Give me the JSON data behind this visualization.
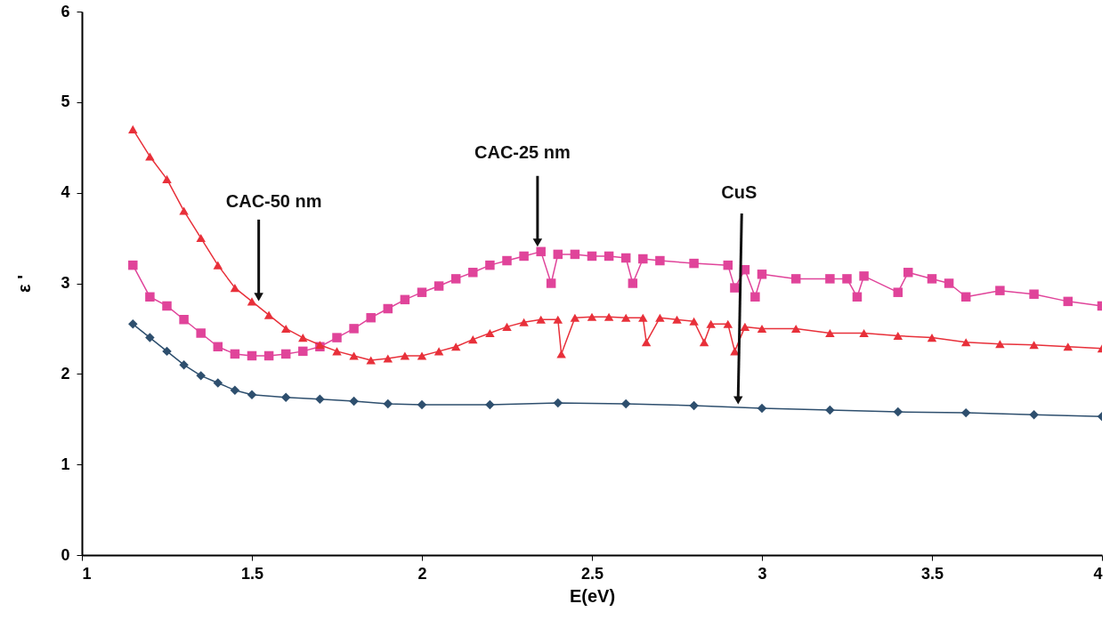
{
  "chart_data": {
    "type": "line",
    "xlabel": "E(eV)",
    "ylabel": "ε '",
    "xlim": [
      1,
      4
    ],
    "ylim": [
      0,
      6
    ],
    "xticks": [
      1,
      1.5,
      2,
      2.5,
      3,
      3.5,
      4
    ],
    "yticks": [
      0,
      1,
      2,
      3,
      4,
      5,
      6
    ],
    "grid": false,
    "annotations": [
      {
        "text": "CAC-50 nm",
        "x": 1.52,
        "y": 2.8
      },
      {
        "text": "CAC-25 nm",
        "x": 2.34,
        "y": 3.4
      },
      {
        "text": "CuS",
        "x": 2.93,
        "y": 1.66
      }
    ],
    "series": [
      {
        "color": "#e8303a",
        "marker": "triangle",
        "x": [
          1.15,
          1.2,
          1.25,
          1.3,
          1.35,
          1.4,
          1.45,
          1.5,
          1.55,
          1.6,
          1.65,
          1.7,
          1.75,
          1.8,
          1.85,
          1.9,
          1.95,
          2.0,
          2.05,
          2.1,
          2.15,
          2.2,
          2.25,
          2.3,
          2.35,
          2.4,
          2.41,
          2.45,
          2.5,
          2.55,
          2.6,
          2.65,
          2.66,
          2.7,
          2.75,
          2.8,
          2.83,
          2.85,
          2.9,
          2.92,
          2.95,
          3.0,
          3.1,
          3.2,
          3.3,
          3.4,
          3.5,
          3.6,
          3.7,
          3.8,
          3.9,
          4.0
        ],
        "values": [
          4.7,
          4.4,
          4.15,
          3.8,
          3.5,
          3.2,
          2.95,
          2.8,
          2.65,
          2.5,
          2.4,
          2.32,
          2.25,
          2.2,
          2.15,
          2.17,
          2.2,
          2.2,
          2.25,
          2.3,
          2.38,
          2.45,
          2.52,
          2.57,
          2.6,
          2.6,
          2.22,
          2.62,
          2.63,
          2.63,
          2.62,
          2.62,
          2.35,
          2.62,
          2.6,
          2.58,
          2.35,
          2.55,
          2.55,
          2.25,
          2.52,
          2.5,
          2.5,
          2.45,
          2.45,
          2.42,
          2.4,
          2.35,
          2.33,
          2.32,
          2.3,
          2.28
        ]
      },
      {
        "color": "#e0449a",
        "marker": "square",
        "x": [
          1.15,
          1.2,
          1.25,
          1.3,
          1.35,
          1.4,
          1.45,
          1.5,
          1.55,
          1.6,
          1.65,
          1.7,
          1.75,
          1.8,
          1.85,
          1.9,
          1.95,
          2.0,
          2.05,
          2.1,
          2.15,
          2.2,
          2.25,
          2.3,
          2.35,
          2.38,
          2.4,
          2.45,
          2.5,
          2.55,
          2.6,
          2.62,
          2.65,
          2.7,
          2.8,
          2.9,
          2.92,
          2.95,
          2.98,
          3.0,
          3.1,
          3.2,
          3.25,
          3.28,
          3.3,
          3.4,
          3.43,
          3.5,
          3.55,
          3.6,
          3.7,
          3.8,
          3.9,
          4.0
        ],
        "values": [
          3.2,
          2.85,
          2.75,
          2.6,
          2.45,
          2.3,
          2.22,
          2.2,
          2.2,
          2.22,
          2.25,
          2.3,
          2.4,
          2.5,
          2.62,
          2.72,
          2.82,
          2.9,
          2.97,
          3.05,
          3.12,
          3.2,
          3.25,
          3.3,
          3.35,
          3.0,
          3.32,
          3.32,
          3.3,
          3.3,
          3.28,
          3.0,
          3.27,
          3.25,
          3.22,
          3.2,
          2.95,
          3.15,
          2.85,
          3.1,
          3.05,
          3.05,
          3.05,
          2.85,
          3.08,
          2.9,
          3.12,
          3.05,
          3.0,
          2.85,
          2.92,
          2.88,
          2.8,
          2.75
        ]
      },
      {
        "color": "#2e4f6e",
        "marker": "diamond",
        "x": [
          1.15,
          1.2,
          1.25,
          1.3,
          1.35,
          1.4,
          1.45,
          1.5,
          1.6,
          1.7,
          1.8,
          1.9,
          2.0,
          2.2,
          2.4,
          2.6,
          2.8,
          3.0,
          3.2,
          3.4,
          3.6,
          3.8,
          4.0
        ],
        "values": [
          2.55,
          2.4,
          2.25,
          2.1,
          1.98,
          1.9,
          1.82,
          1.77,
          1.74,
          1.72,
          1.7,
          1.67,
          1.66,
          1.66,
          1.68,
          1.67,
          1.65,
          1.62,
          1.6,
          1.58,
          1.57,
          1.55,
          1.53
        ]
      }
    ]
  }
}
